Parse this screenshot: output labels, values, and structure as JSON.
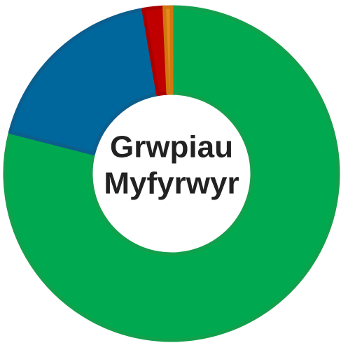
{
  "chart_data": {
    "type": "donut",
    "title": [
      "Grwpiau",
      "Myfyrwyr"
    ],
    "categories": [
      null,
      null,
      null,
      null
    ],
    "values": [
      79,
      18.3,
      2,
      0.7
    ],
    "colors": [
      "#00a94f",
      "#00679c",
      "#c00000",
      "#e8891c"
    ],
    "stroke_colors": [
      "#12a04c",
      "#0b5e8e",
      "#a80000",
      "#d07610"
    ]
  }
}
